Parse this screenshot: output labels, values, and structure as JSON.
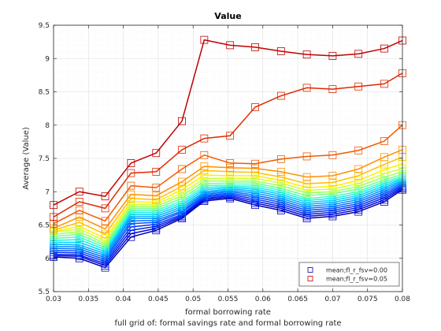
{
  "chart_data": {
    "type": "line",
    "title": "Value",
    "xlabel": "formal borrowing rate",
    "ylabel": "Average (Value)",
    "caption": "full grid of: formal savings rate and formal borrowing rate",
    "xlim": [
      0.03,
      0.08
    ],
    "ylim": [
      5.5,
      9.5
    ],
    "xticks": [
      0.03,
      0.035,
      0.04,
      0.045,
      0.05,
      0.055,
      0.06,
      0.065,
      0.07,
      0.075,
      0.08
    ],
    "xtick_labels": [
      "0.03",
      "0.035",
      "0.04",
      "0.045",
      "0.05",
      "0.055",
      "0.06",
      "0.065",
      "0.07",
      "0.075",
      "0.08"
    ],
    "yticks": [
      5.5,
      6,
      6.5,
      7,
      7.5,
      8,
      8.5,
      9,
      9.5
    ],
    "ytick_labels": [
      "5.5",
      "6",
      "6.5",
      "7",
      "7.5",
      "8",
      "8.5",
      "9",
      "9.5"
    ],
    "grid": true,
    "legend_position": "bottom-right",
    "x": [
      0.03,
      0.0337,
      0.0374,
      0.0411,
      0.0447,
      0.0484,
      0.0516,
      0.0553,
      0.0589,
      0.0626,
      0.0663,
      0.07,
      0.0737,
      0.0774,
      0.08
    ],
    "series": [
      {
        "name": "mean;fl_r_fsv=0.00",
        "color": "#0000b3",
        "values": [
          6.02,
          6.0,
          5.86,
          6.32,
          6.42,
          6.6,
          6.86,
          6.9,
          6.8,
          6.72,
          6.6,
          6.63,
          6.7,
          6.85,
          7.03
        ]
      },
      {
        "color": "#0008d0",
        "values": [
          6.04,
          6.03,
          5.89,
          6.37,
          6.45,
          6.62,
          6.88,
          6.92,
          6.83,
          6.75,
          6.63,
          6.66,
          6.73,
          6.88,
          7.05
        ]
      },
      {
        "color": "#0018ea",
        "values": [
          6.06,
          6.05,
          5.92,
          6.42,
          6.48,
          6.64,
          6.9,
          6.94,
          6.86,
          6.78,
          6.66,
          6.69,
          6.76,
          6.91,
          7.07
        ]
      },
      {
        "color": "#0030ff",
        "values": [
          6.09,
          6.08,
          5.95,
          6.47,
          6.51,
          6.66,
          6.92,
          6.96,
          6.89,
          6.81,
          6.69,
          6.72,
          6.79,
          6.94,
          7.09
        ]
      },
      {
        "color": "#0050ff",
        "values": [
          6.12,
          6.11,
          5.98,
          6.52,
          6.54,
          6.69,
          6.94,
          6.98,
          6.92,
          6.84,
          6.72,
          6.75,
          6.82,
          6.97,
          7.11
        ]
      },
      {
        "color": "#0070ff",
        "values": [
          6.15,
          6.14,
          6.01,
          6.56,
          6.57,
          6.71,
          6.96,
          7.0,
          6.95,
          6.87,
          6.75,
          6.78,
          6.85,
          7.0,
          7.13
        ]
      },
      {
        "color": "#0090ff",
        "values": [
          6.18,
          6.17,
          6.04,
          6.6,
          6.6,
          6.74,
          6.98,
          7.02,
          6.98,
          6.9,
          6.78,
          6.81,
          6.88,
          7.03,
          7.15
        ]
      },
      {
        "color": "#00b0ff",
        "values": [
          6.21,
          6.2,
          6.07,
          6.63,
          6.63,
          6.77,
          7.0,
          7.04,
          7.01,
          6.93,
          6.81,
          6.84,
          6.91,
          7.06,
          7.17
        ]
      },
      {
        "color": "#00d0ff",
        "values": [
          6.24,
          6.24,
          6.1,
          6.66,
          6.66,
          6.8,
          7.03,
          7.06,
          7.04,
          6.96,
          6.84,
          6.87,
          6.94,
          7.09,
          7.19
        ]
      },
      {
        "color": "#10f0f0",
        "values": [
          6.27,
          6.28,
          6.13,
          6.69,
          6.69,
          6.83,
          7.06,
          7.08,
          7.07,
          6.99,
          6.87,
          6.9,
          6.97,
          7.12,
          7.21
        ]
      },
      {
        "color": "#40ffc0",
        "values": [
          6.3,
          6.32,
          6.16,
          6.72,
          6.72,
          6.86,
          7.09,
          7.1,
          7.1,
          7.02,
          6.9,
          6.93,
          7.0,
          7.15,
          7.23
        ]
      },
      {
        "color": "#70ff90",
        "values": [
          6.33,
          6.36,
          6.19,
          6.75,
          6.75,
          6.9,
          7.12,
          7.13,
          7.13,
          7.05,
          6.94,
          6.97,
          7.04,
          7.18,
          7.26
        ]
      },
      {
        "color": "#a0ff60",
        "values": [
          6.36,
          6.4,
          6.22,
          6.78,
          6.78,
          6.94,
          7.16,
          7.16,
          7.16,
          7.09,
          6.98,
          7.0,
          7.08,
          7.22,
          7.3
        ]
      },
      {
        "color": "#d0ff30",
        "values": [
          6.39,
          6.44,
          6.26,
          6.81,
          6.81,
          6.98,
          7.2,
          7.2,
          7.2,
          7.13,
          7.02,
          7.04,
          7.12,
          7.27,
          7.35
        ]
      },
      {
        "color": "#ffef00",
        "values": [
          6.4,
          6.48,
          6.3,
          6.85,
          6.84,
          7.03,
          7.25,
          7.24,
          7.24,
          7.17,
          7.06,
          7.08,
          7.17,
          7.33,
          7.42
        ]
      },
      {
        "color": "#ffc000",
        "values": [
          6.42,
          6.54,
          6.36,
          6.9,
          6.88,
          7.08,
          7.32,
          7.3,
          7.29,
          7.22,
          7.12,
          7.14,
          7.24,
          7.41,
          7.52
        ]
      },
      {
        "color": "#ff9000",
        "values": [
          6.45,
          6.62,
          6.44,
          6.96,
          6.94,
          7.15,
          7.38,
          7.36,
          7.35,
          7.3,
          7.22,
          7.24,
          7.34,
          7.52,
          7.63
        ]
      },
      {
        "color": "#f05a00",
        "values": [
          6.52,
          6.72,
          6.56,
          7.09,
          7.06,
          7.34,
          7.55,
          7.43,
          7.42,
          7.49,
          7.53,
          7.55,
          7.62,
          7.76,
          8.0
        ]
      },
      {
        "color": "#e02800",
        "values": [
          6.62,
          6.85,
          6.75,
          7.28,
          7.3,
          7.63,
          7.8,
          7.84,
          8.27,
          8.44,
          8.56,
          8.54,
          8.58,
          8.62,
          8.78
        ]
      },
      {
        "name": "mean;fl_r_fsv=0.05",
        "color": "#c00000",
        "values": [
          6.8,
          7.0,
          6.93,
          7.43,
          7.58,
          8.06,
          9.28,
          9.2,
          9.17,
          9.11,
          9.06,
          9.04,
          9.07,
          9.15,
          9.27
        ]
      }
    ]
  }
}
